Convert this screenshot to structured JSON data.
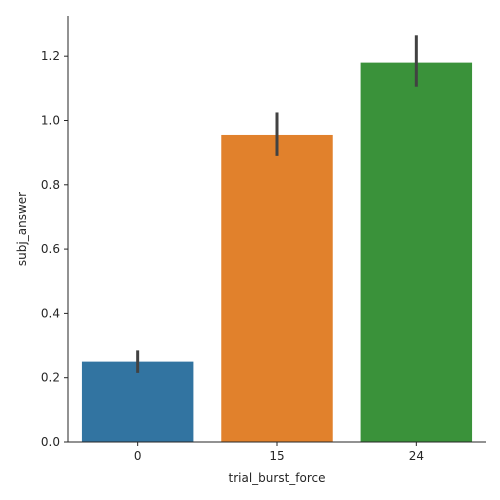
{
  "chart_data": {
    "type": "bar",
    "title": "",
    "xlabel": "trial_burst_force",
    "ylabel": "subj_answer",
    "categories": [
      "0",
      "15",
      "24"
    ],
    "values": [
      0.25,
      0.955,
      1.18
    ],
    "error_low": [
      0.215,
      0.89,
      1.105
    ],
    "error_high": [
      0.285,
      1.025,
      1.265
    ],
    "colors": [
      "#3274a1",
      "#e1812c",
      "#3a923a"
    ],
    "error_color": "#424242",
    "ylim": [
      0,
      1.325
    ],
    "yticks": [
      0.0,
      0.2,
      0.4,
      0.6,
      0.8,
      1.0,
      1.2
    ],
    "ytick_labels": [
      "0.0",
      "0.2",
      "0.4",
      "0.6",
      "0.8",
      "1.0",
      "1.2"
    ],
    "grid": false,
    "legend": "none"
  }
}
